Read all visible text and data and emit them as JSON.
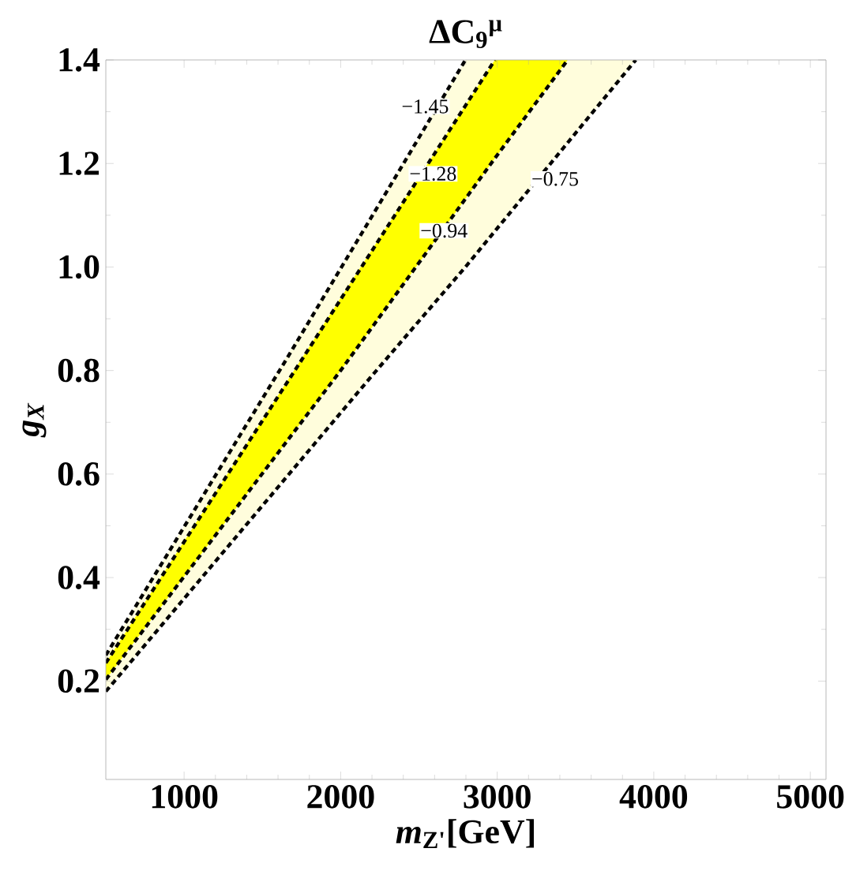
{
  "chart_data": {
    "type": "line",
    "title": "ΔC$_{9}$$^{μ}$",
    "xlabel": "*m*$_{Z'}$[GeV]",
    "ylabel": "g$_{X}$",
    "xlim": [
      500,
      5100
    ],
    "ylim": [
      0.01,
      1.4
    ],
    "xticks": [
      1000,
      2000,
      3000,
      4000,
      5000
    ],
    "yticks": [
      0.2,
      0.4,
      0.6,
      0.8,
      {
        "value": 1,
        "label": "1.0"
      },
      1.2,
      1.4
    ],
    "series": [
      {
        "color": "#000000",
        "x": [
          500,
          2200,
          2797,
          3885
        ],
        "values": [
          0.18,
          0.79,
          1.0,
          1.4
        ],
        "lower": [
          0.18,
          0.79,
          1.0,
          1.4
        ],
        "upper": [
          0.25,
          1.1,
          1.4,
          1.4
        ]
      },
      {
        "color": "#000000",
        "x": [
          500,
          2000,
          2985,
          3450
        ],
        "values": [
          0.203,
          0.8,
          1.21,
          1.4
        ],
        "lower": [
          0.203,
          0.8,
          1.21,
          1.4
        ],
        "upper": [
          0.235,
          0.94,
          1.4,
          1.4
        ]
      },
      {
        "color": "#000000",
        "x": [
          500,
          1750,
          2985
        ],
        "values": [
          0.235,
          0.82,
          1.4
        ]
      },
      {
        "color": "#000000",
        "x": [
          500,
          1650,
          2797
        ],
        "values": [
          0.25,
          0.82,
          1.4
        ]
      }
    ],
    "annotations": [
      {
        "text": "−1.45",
        "x": 2540,
        "y": 1.31
      },
      {
        "text": "−1.28",
        "x": 2590,
        "y": 1.18
      },
      {
        "text": "−0.94",
        "x": 2660,
        "y": 1.07
      },
      {
        "text": "−0.75",
        "x": 3370,
        "y": 1.17
      }
    ],
    "line_style": "dotted",
    "marker": "none",
    "grid": false
  }
}
